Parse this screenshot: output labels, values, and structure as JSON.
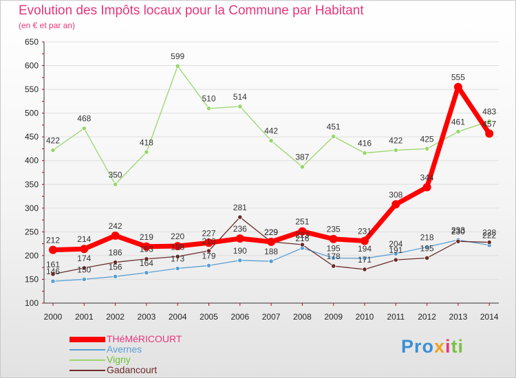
{
  "title": "Evolution des Impôts locaux pour la Commune par Habitant",
  "subtitle": "(en € et par an)",
  "brand": {
    "p1": "Pro",
    "p2": "x",
    "p3": "i",
    "p4": "ti"
  },
  "chart_data": {
    "type": "line",
    "title": "Evolution des Impôts locaux pour la Commune par Habitant",
    "subtitle": "(en € et par an)",
    "xlabel": "",
    "ylabel": "",
    "ylim": [
      100,
      650
    ],
    "yticks": [
      100,
      150,
      200,
      250,
      300,
      350,
      400,
      450,
      500,
      550,
      600,
      650
    ],
    "x": [
      "2000",
      "2001",
      "2002",
      "2003",
      "2004",
      "2005",
      "2006",
      "2007",
      "2008",
      "2009",
      "2010",
      "2011",
      "2012",
      "2013",
      "2014"
    ],
    "legend_position": "bottom-left",
    "series": [
      {
        "name": "Vigny",
        "color": "#98d66b",
        "values": [
          422,
          468,
          350,
          418,
          599,
          510,
          514,
          442,
          387,
          451,
          416,
          422,
          425,
          461,
          483
        ]
      },
      {
        "name": "Avernes",
        "color": "#5a9fd4",
        "values": [
          146,
          150,
          156,
          164,
          173,
          179,
          190,
          188,
          216,
          195,
          194,
          204,
          218,
          233,
          222
        ]
      },
      {
        "name": "Gadancourt",
        "color": "#6b2a2a",
        "values": [
          161,
          174,
          186,
          193,
          198,
          210,
          281,
          229,
          223,
          178,
          171,
          191,
          195,
          230,
          228
        ]
      },
      {
        "name": "THéMéRICOURT",
        "color": "#ff0000",
        "values": [
          212,
          214,
          242,
          219,
          220,
          227,
          236,
          229,
          251,
          235,
          231,
          308,
          344,
          555,
          457
        ]
      }
    ],
    "legend_order": [
      "THéMéRICOURT",
      "Avernes",
      "Vigny",
      "Gadancourt"
    ]
  }
}
